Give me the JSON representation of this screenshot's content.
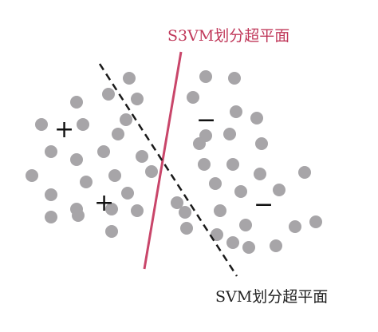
{
  "labels": {
    "s3vm": "S3VM划分超平面",
    "svm": "SVM划分超平面"
  },
  "signs": {
    "plus": "+",
    "minus": "−"
  },
  "colors": {
    "point": "#a7a5a8",
    "s3vm_line": "#c9466a",
    "svm_line": "#1a1a1a",
    "s3vm_text": "#c0385a",
    "svm_text": "#222222"
  }
}
